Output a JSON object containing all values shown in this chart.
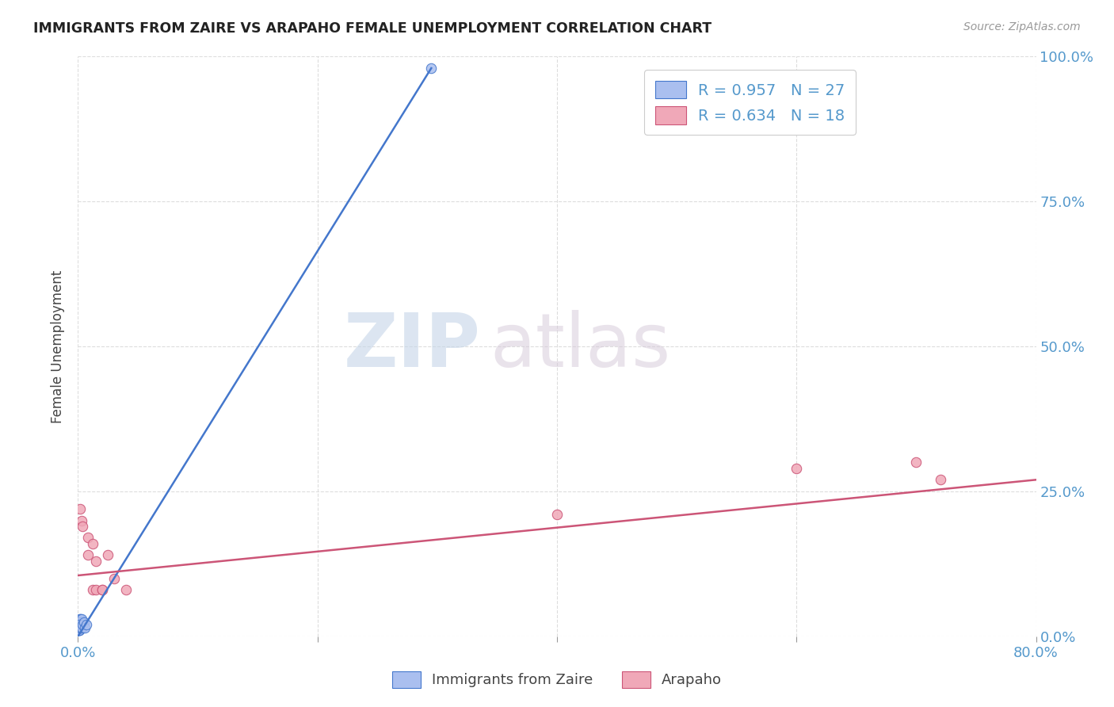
{
  "title": "IMMIGRANTS FROM ZAIRE VS ARAPAHO FEMALE UNEMPLOYMENT CORRELATION CHART",
  "source": "Source: ZipAtlas.com",
  "ylabel": "Female Unemployment",
  "xlim": [
    0.0,
    0.8
  ],
  "ylim": [
    0.0,
    1.0
  ],
  "xtick_vals": [
    0.0,
    0.2,
    0.4,
    0.6,
    0.8
  ],
  "xtick_labels": [
    "0.0%",
    "",
    "",
    "",
    "80.0%"
  ],
  "ytick_vals": [
    0.0,
    0.25,
    0.5,
    0.75,
    1.0
  ],
  "ytick_labels_right": [
    "0.0%",
    "25.0%",
    "50.0%",
    "75.0%",
    "100.0%"
  ],
  "legend1_label": "R = 0.957   N = 27",
  "legend2_label": "R = 0.634   N = 18",
  "legend_blue_color": "#aabfef",
  "legend_pink_color": "#f0a8b8",
  "blue_scatter_x": [
    0.001,
    0.002,
    0.001,
    0.003,
    0.002,
    0.001,
    0.002,
    0.003,
    0.001,
    0.002,
    0.001,
    0.002,
    0.003,
    0.001,
    0.002,
    0.003,
    0.001,
    0.002,
    0.001,
    0.003,
    0.002,
    0.001,
    0.003,
    0.004,
    0.005,
    0.006,
    0.007
  ],
  "blue_scatter_y": [
    0.02,
    0.03,
    0.015,
    0.025,
    0.02,
    0.01,
    0.03,
    0.02,
    0.015,
    0.025,
    0.02,
    0.015,
    0.025,
    0.01,
    0.02,
    0.015,
    0.025,
    0.02,
    0.01,
    0.03,
    0.015,
    0.02,
    0.015,
    0.02,
    0.025,
    0.015,
    0.02
  ],
  "blue_outlier_x": [
    0.295
  ],
  "blue_outlier_y": [
    0.98
  ],
  "pink_scatter_x": [
    0.002,
    0.003,
    0.004,
    0.008,
    0.008,
    0.012,
    0.012,
    0.015,
    0.015,
    0.02,
    0.02,
    0.025,
    0.03,
    0.04,
    0.4,
    0.6,
    0.7,
    0.72
  ],
  "pink_scatter_y": [
    0.22,
    0.2,
    0.19,
    0.17,
    0.14,
    0.16,
    0.08,
    0.13,
    0.08,
    0.08,
    0.08,
    0.14,
    0.1,
    0.08,
    0.21,
    0.29,
    0.3,
    0.27
  ],
  "blue_line_x": [
    0.0,
    0.295
  ],
  "blue_line_y": [
    0.0,
    0.98
  ],
  "pink_line_x": [
    0.0,
    0.8
  ],
  "pink_line_y": [
    0.105,
    0.27
  ],
  "blue_color": "#4477cc",
  "pink_color": "#cc5577",
  "watermark_zip": "ZIP",
  "watermark_atlas": "atlas",
  "background_color": "#ffffff",
  "grid_color": "#dddddd",
  "tick_color": "#5599cc",
  "label_color": "#444444"
}
